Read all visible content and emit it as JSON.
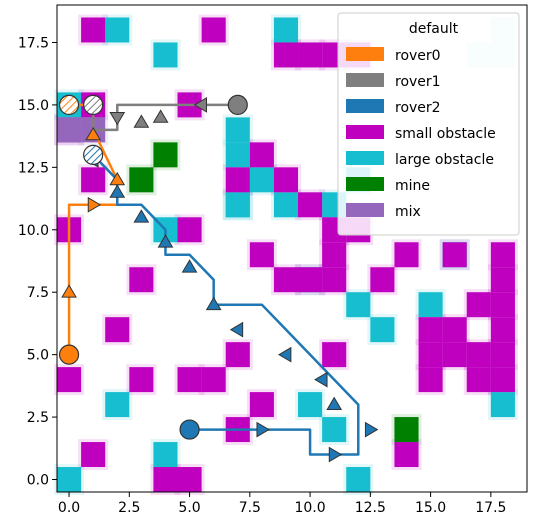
{
  "chart_data": {
    "type": "scatter",
    "description_kind": "grid map with rover paths",
    "xlim": [
      -0.5,
      19.0
    ],
    "ylim": [
      -0.5,
      19.0
    ],
    "x_ticks": [
      0.0,
      2.5,
      5.0,
      7.5,
      10.0,
      12.5,
      15.0,
      17.5
    ],
    "y_ticks": [
      0.0,
      2.5,
      5.0,
      7.5,
      10.0,
      12.5,
      15.0,
      17.5
    ],
    "x_tick_labels": [
      "0.0",
      "2.5",
      "5.0",
      "7.5",
      "10.0",
      "12.5",
      "15.0",
      "17.5"
    ],
    "y_tick_labels": [
      "0.0",
      "2.5",
      "5.0",
      "7.5",
      "10.0",
      "12.5",
      "15.0",
      "17.5"
    ],
    "grid": false,
    "legend": {
      "title": "default",
      "position": "top-right",
      "entries": [
        {
          "label": "rover0",
          "color": "#ff7f0e"
        },
        {
          "label": "rover1",
          "color": "#7f7f7f"
        },
        {
          "label": "rover2",
          "color": "#1f77b4"
        },
        {
          "label": "small obstacle",
          "color": "#bf00bf"
        },
        {
          "label": "large obstacle",
          "color": "#17becf"
        },
        {
          "label": "mine",
          "color": "#008000"
        },
        {
          "label": "mix",
          "color": "#9467bd"
        }
      ]
    },
    "cells": {
      "small_obstacle": [
        [
          1,
          18
        ],
        [
          6,
          18
        ],
        [
          9,
          17
        ],
        [
          10,
          17
        ],
        [
          11,
          17
        ],
        [
          12,
          17
        ],
        [
          5,
          15
        ],
        [
          0,
          14
        ],
        [
          1,
          12
        ],
        [
          0,
          10
        ],
        [
          10,
          11
        ],
        [
          11,
          10
        ],
        [
          12,
          10
        ],
        [
          14,
          9
        ],
        [
          11,
          9
        ],
        [
          11,
          8
        ],
        [
          3,
          8
        ],
        [
          9,
          8
        ],
        [
          10,
          8
        ],
        [
          13,
          8
        ],
        [
          17,
          7
        ],
        [
          15,
          6
        ],
        [
          2,
          6
        ],
        [
          7,
          5
        ],
        [
          11,
          5
        ],
        [
          15,
          5
        ],
        [
          16,
          5
        ],
        [
          17,
          5
        ],
        [
          18,
          5
        ],
        [
          0,
          4
        ],
        [
          3,
          4
        ],
        [
          5,
          4
        ],
        [
          6,
          4
        ],
        [
          15,
          4
        ],
        [
          17,
          4
        ],
        [
          18,
          4
        ],
        [
          8,
          3
        ],
        [
          7,
          2
        ],
        [
          14,
          1
        ],
        [
          1,
          1
        ],
        [
          4,
          0
        ],
        [
          5,
          0
        ],
        [
          18,
          9
        ],
        [
          18,
          8
        ],
        [
          16,
          9
        ],
        [
          1,
          15
        ],
        [
          8,
          13
        ],
        [
          9,
          12
        ],
        [
          7,
          12
        ],
        [
          8,
          9
        ],
        [
          5,
          10
        ],
        [
          16,
          6
        ],
        [
          18,
          6
        ],
        [
          18,
          7
        ]
      ],
      "large_obstacle": [
        [
          2,
          18
        ],
        [
          9,
          18
        ],
        [
          4,
          17
        ],
        [
          0,
          15
        ],
        [
          7,
          14
        ],
        [
          7,
          13
        ],
        [
          16,
          9
        ],
        [
          12,
          12
        ],
        [
          11,
          11
        ],
        [
          7,
          11
        ],
        [
          4,
          10
        ],
        [
          10,
          8
        ],
        [
          12,
          7
        ],
        [
          15,
          7
        ],
        [
          13,
          6
        ],
        [
          10,
          3
        ],
        [
          11,
          2
        ],
        [
          2,
          3
        ],
        [
          18,
          3
        ],
        [
          4,
          1
        ],
        [
          0,
          0
        ],
        [
          12,
          0
        ],
        [
          8,
          12
        ],
        [
          9,
          11
        ],
        [
          7,
          11
        ]
      ],
      "mine": [
        [
          4,
          13
        ],
        [
          3,
          12
        ],
        [
          14,
          2
        ]
      ],
      "mix": [
        [
          0,
          14
        ],
        [
          1,
          14
        ]
      ],
      "faint_marker_cells": [
        [
          18,
          18
        ],
        [
          17,
          17
        ],
        [
          18,
          17
        ]
      ]
    },
    "series": [
      {
        "name": "rover0",
        "color": "#ff7f0e",
        "x": [
          0.0,
          0.0,
          0.0,
          0.0,
          0.0,
          1.0,
          2.0,
          2.0,
          1.0,
          1.0,
          0.0
        ],
        "y": [
          5.0,
          7.5,
          10.0,
          11.0,
          11.0,
          11.0,
          11.0,
          12.0,
          14.0,
          15.0,
          15.0
        ],
        "start": [
          0.0,
          5.0
        ],
        "goal": [
          0.0,
          15.0
        ],
        "arrows": [
          [
            0.0,
            7.5,
            "up"
          ],
          [
            1.0,
            11.0,
            "right"
          ],
          [
            2.0,
            12.0,
            "up"
          ],
          [
            1.0,
            13.8,
            "up"
          ]
        ]
      },
      {
        "name": "rover1",
        "color": "#7f7f7f",
        "x": [
          7.0,
          6.0,
          5.0,
          4.0,
          3.0,
          2.0,
          2.0,
          1.0,
          1.0
        ],
        "y": [
          15.0,
          15.0,
          15.0,
          15.0,
          15.0,
          15.0,
          14.0,
          14.0,
          15.0
        ],
        "start": [
          7.0,
          15.0
        ],
        "goal": [
          1.0,
          15.0
        ],
        "arrows": [
          [
            5.5,
            15.0,
            "left"
          ],
          [
            3.8,
            14.5,
            "up"
          ],
          [
            3.0,
            14.3,
            "up"
          ],
          [
            2.0,
            14.5,
            "down"
          ]
        ]
      },
      {
        "name": "rover2",
        "color": "#1f77b4",
        "x": [
          5.0,
          7.0,
          8.0,
          9.0,
          10.0,
          10.0,
          11.0,
          12.0,
          12.0,
          11.0,
          10.0,
          9.0,
          8.0,
          7.0,
          6.0,
          6.0,
          5.0,
          4.0,
          4.0,
          3.0,
          2.0,
          2.0,
          1.0
        ],
        "y": [
          2.0,
          2.0,
          2.0,
          2.0,
          2.0,
          1.0,
          1.0,
          1.0,
          3.0,
          4.0,
          5.0,
          6.0,
          7.0,
          7.0,
          7.0,
          8.0,
          9.0,
          9.0,
          10.0,
          11.0,
          11.0,
          12.0,
          13.0
        ],
        "start": [
          5.0,
          2.0
        ],
        "goal": [
          1.0,
          13.0
        ],
        "arrows": [
          [
            8.0,
            2.0,
            "right"
          ],
          [
            11.0,
            1.0,
            "right"
          ],
          [
            12.5,
            2.0,
            "right"
          ],
          [
            11.0,
            3.0,
            "up"
          ],
          [
            10.5,
            4.0,
            "left"
          ],
          [
            9.0,
            5.0,
            "left"
          ],
          [
            7.0,
            6.0,
            "left"
          ],
          [
            6.0,
            7.0,
            "up"
          ],
          [
            5.0,
            8.5,
            "up"
          ],
          [
            4.0,
            9.5,
            "up"
          ],
          [
            3.0,
            10.5,
            "up"
          ],
          [
            2.0,
            11.5,
            "up"
          ],
          [
            1.0,
            12.8,
            "left"
          ]
        ]
      }
    ]
  }
}
